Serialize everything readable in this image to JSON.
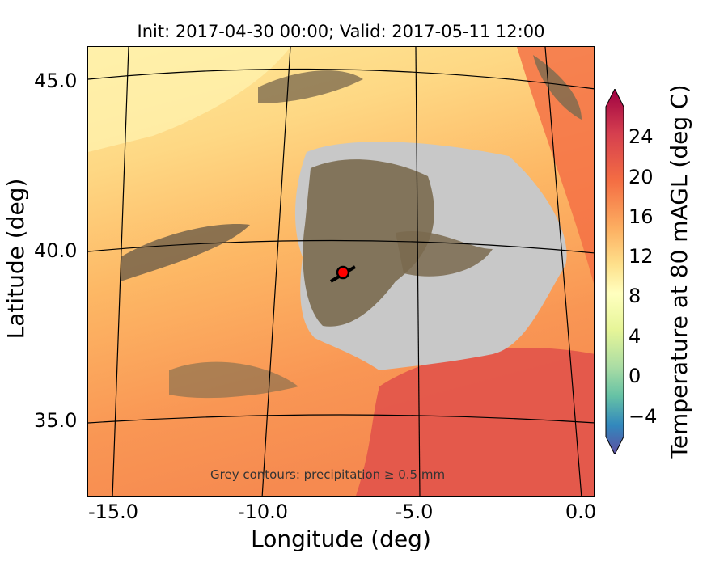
{
  "title": "Init: 2017-04-30 00:00; Valid: 2017-05-11 12:00",
  "xlabel": "Longitude (deg)",
  "ylabel": "Latitude (deg)",
  "x_ticks": [
    "-15.0",
    "-10.0",
    "-5.0",
    "0.0"
  ],
  "y_ticks": [
    "45.0",
    "40.0",
    "35.0"
  ],
  "annotation": "Grey contours: precipitation ≥ 0.5 mm",
  "colorbar": {
    "label": "Temperature at 80 mAGL (deg C)",
    "ticks": [
      "24",
      "20",
      "16",
      "12",
      "8",
      "4",
      "0",
      "−4"
    ],
    "range": [
      -8,
      28
    ],
    "colormap": "Spectral_r"
  },
  "marker": {
    "lon": -7.6,
    "lat": 39.4,
    "color": "#ff0000"
  },
  "chart_data": {
    "type": "heatmap",
    "title": "Init: 2017-04-30 00:00; Valid: 2017-05-11 12:00",
    "xlabel": "Longitude (deg)",
    "ylabel": "Latitude (deg)",
    "xlim": [
      -16,
      0.3
    ],
    "ylim": [
      33,
      46
    ],
    "variable": "Temperature at 80 mAGL (deg C)",
    "value_range": [
      -8,
      28
    ]
  }
}
